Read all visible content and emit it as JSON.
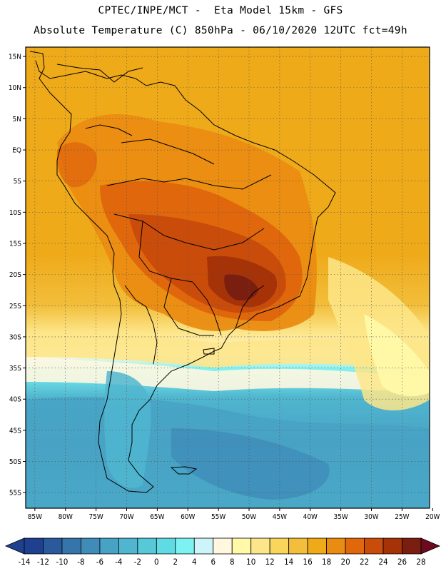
{
  "header": {
    "line1": "CPTEC/INPE/MCT -  Eta Model 15km - GFS",
    "line2": "Absolute Temperature (C) 850hPa - 06/10/2020 12UTC fct=49h"
  },
  "map": {
    "lat_ticks": [
      "15N",
      "10N",
      "5N",
      "EQ",
      "5S",
      "10S",
      "15S",
      "20S",
      "25S",
      "30S",
      "35S",
      "40S",
      "45S",
      "50S",
      "55S"
    ],
    "lon_ticks": [
      "85W",
      "80W",
      "75W",
      "70W",
      "65W",
      "60W",
      "55W",
      "50W",
      "45W",
      "40W",
      "35W",
      "30W",
      "25W",
      "20W"
    ],
    "lat_range": [
      -57.5,
      16.5
    ],
    "lon_range": [
      -86.5,
      -20.5
    ],
    "gridlines": true
  },
  "colorbar": {
    "labels": [
      "-14",
      "-12",
      "-10",
      "-8",
      "-6",
      "-4",
      "-2",
      "0",
      "2",
      "4",
      "6",
      "8",
      "10",
      "12",
      "14",
      "16",
      "18",
      "20",
      "22",
      "24",
      "26",
      "28"
    ],
    "colors": [
      "#1f3f8f",
      "#2b5a9c",
      "#3575aa",
      "#3f8cb8",
      "#48a2c4",
      "#50b6cf",
      "#57c8d8",
      "#5fdbe4",
      "#7df2f2",
      "#cdf4f8",
      "#fff7e0",
      "#fff9a8",
      "#fde68a",
      "#fad55c",
      "#f2be3b",
      "#efaa1a",
      "#ea8c12",
      "#e0670c",
      "#c94c0a",
      "#a63208",
      "#7a1f10"
    ],
    "under_color": "#1f3f8f",
    "over_color": "#6e0a1e"
  }
}
